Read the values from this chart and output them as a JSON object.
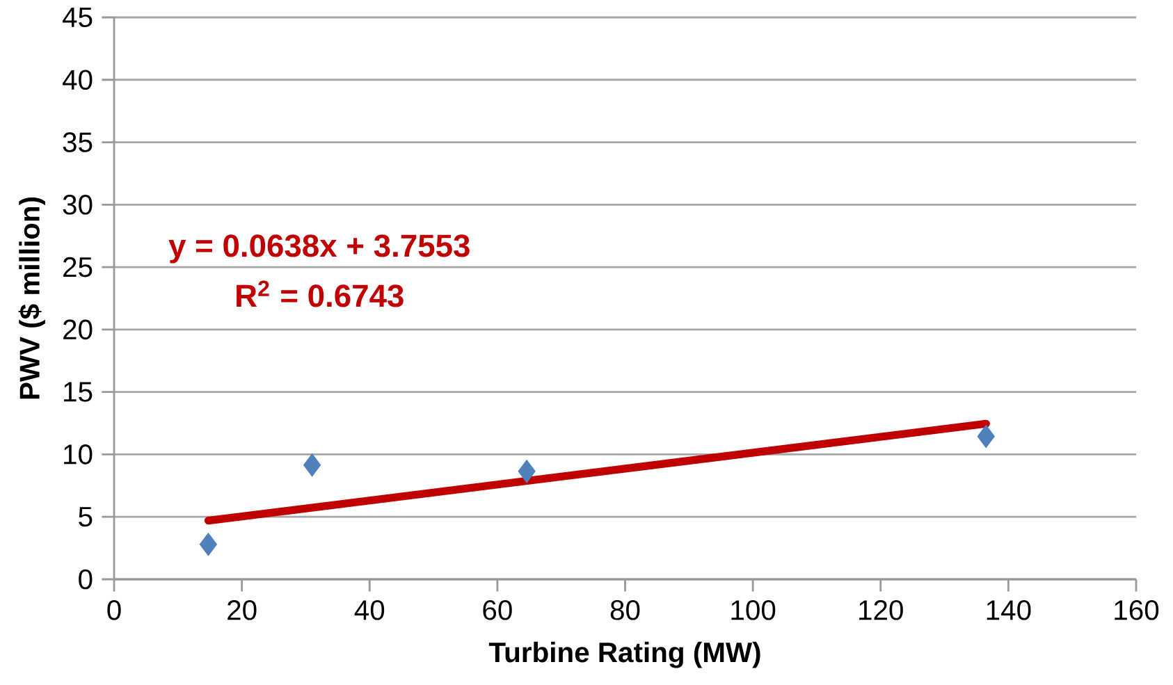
{
  "chart_data": {
    "type": "scatter",
    "xlabel": "Turbine Rating (MW)",
    "ylabel": "PWV ($ million)",
    "series": [
      {
        "color": "#4f81bd",
        "marker": "diamond",
        "x": [
          14.75,
          31.0,
          64.6,
          136.5
        ],
        "values": [
          2.8,
          9.15,
          8.65,
          11.45
        ]
      },
      {
        "type": "line",
        "color": "#c00000",
        "marker": "none",
        "line_style": "solid",
        "x": [
          14.75,
          136.5
        ],
        "values": [
          4.7,
          12.46
        ]
      }
    ],
    "annotations": [
      "y = 0.0638x + 3.7553",
      "R$^{2}$ = 0.6743"
    ],
    "xlim": [
      0,
      160
    ],
    "xticks": [
      0,
      20,
      40,
      60,
      80,
      100,
      120,
      140,
      160
    ],
    "ylim": [
      0,
      45
    ],
    "yticks": [
      0,
      5,
      10,
      15,
      20,
      25,
      30,
      35,
      40,
      45
    ],
    "grid": "y"
  }
}
